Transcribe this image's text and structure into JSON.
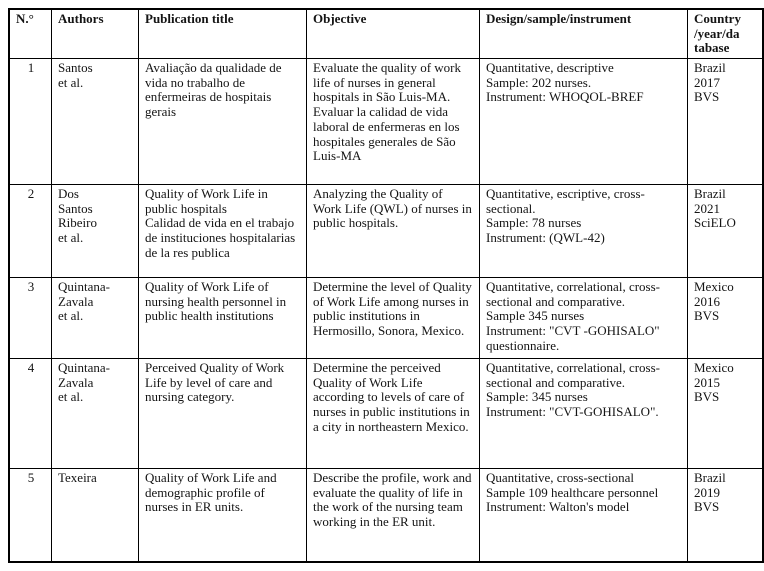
{
  "table": {
    "columns": [
      {
        "key": "n",
        "label": "N.°"
      },
      {
        "key": "authors",
        "label": "Authors"
      },
      {
        "key": "title",
        "label": "Publication title"
      },
      {
        "key": "objective",
        "label": "Objective"
      },
      {
        "key": "design",
        "label": "Design/sample/instrument"
      },
      {
        "key": "country",
        "label": "Country\n/year/da\ntabase"
      }
    ],
    "rows": [
      {
        "n": "1",
        "authors": "Santos\net al.",
        "title": "Avaliação da qualidade de vida no trabalho de enfermeiras de hospitais gerais",
        "objective": "Evaluate the quality of work life of nurses in general hospitals in São Luis-MA.\nEvaluar la calidad de vida laboral de enfermeras en los hospitales generales de São Luis-MA",
        "design": "Quantitative, descriptive\nSample: 202 nurses.\nInstrument: WHOQOL-BREF",
        "country": "Brazil\n2017\nBVS"
      },
      {
        "n": "2",
        "authors": "Dos\nSantos\nRibeiro\net al.",
        "title": "Quality of Work Life in public hospitals\nCalidad de vida en el trabajo de instituciones hospitalarias de la res publica",
        "objective": "Analyzing the Quality of Work Life (QWL) of nurses in public hospitals.",
        "design": "Quantitative, escriptive, cross-sectional.\nSample: 78 nurses\nInstrument: (QWL-42)",
        "country": "Brazil\n2021\nSciELO"
      },
      {
        "n": "3",
        "authors": "Quintana-\nZavala\net al.",
        "title": "Quality of Work Life of nursing health personnel in public health institutions",
        "objective": "Determine the level of Quality of Work Life among nurses in public institutions in Hermosillo, Sonora, Mexico.",
        "design": "Quantitative, correlational, cross-sectional and comparative.\nSample 345 nurses\nInstrument: \"CVT -GOHISALO\" questionnaire.",
        "country": "Mexico\n2016\nBVS"
      },
      {
        "n": "4",
        "authors": "Quintana-\nZavala\net al.",
        "title": "Perceived Quality of Work Life by level of care and nursing category.",
        "objective": "Determine the perceived Quality of Work Life according to levels of care of nurses in public institutions in a city in northeastern Mexico.",
        "design": "Quantitative, correlational, cross-sectional and comparative.\nSample: 345 nurses\nInstrument: \"CVT-GOHISALO\".",
        "country": "Mexico\n2015\nBVS"
      },
      {
        "n": "5",
        "authors": "Texeira",
        "title": "Quality of Work Life and demographic profile of nurses in ER units.",
        "objective": "Describe the profile, work and evaluate the quality of life in the work of the nursing team working in the ER unit.",
        "design": "Quantitative, cross-sectional\nSample 109 healthcare personnel\nInstrument: Walton's model",
        "country": "Brazil\n2019\nBVS"
      }
    ]
  }
}
